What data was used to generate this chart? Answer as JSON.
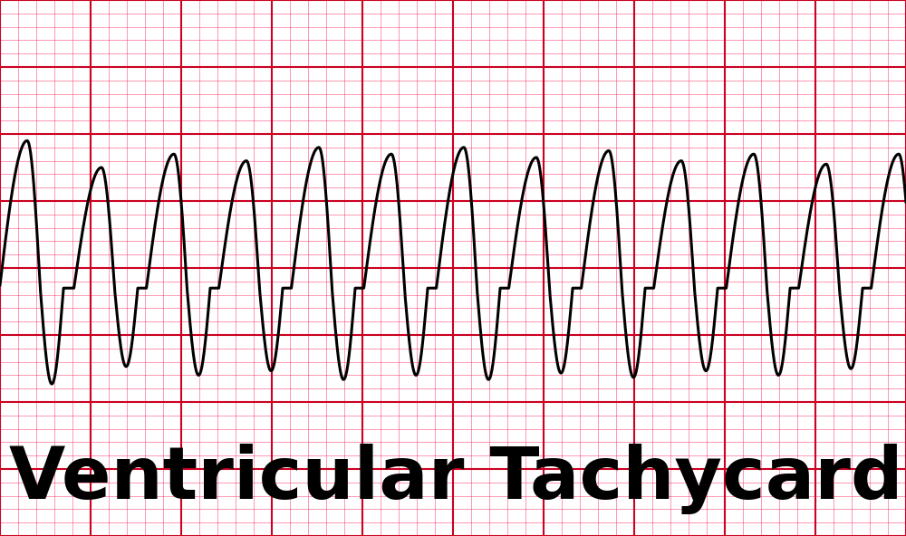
{
  "title": "Ventricular Tachycardia",
  "bg_color": "#ffffff",
  "ecg_paper_bg": "#ffb0c0",
  "grid_minor_color": "#ff3366",
  "grid_major_color": "#cc0022",
  "ecg_color": "#000000",
  "ecg_linewidth": 2.2,
  "text_color": "#000000",
  "text_fontsize": 58,
  "figsize": [
    10.0,
    5.92
  ],
  "dpi": 100,
  "n_points": 8000,
  "xlim": [
    0,
    10
  ],
  "ylim": [
    -3.5,
    4.5
  ],
  "waveform_centers": [
    0.3,
    1.12,
    1.92,
    2.72,
    3.52,
    4.32,
    5.12,
    5.92,
    6.72,
    7.52,
    8.32,
    9.12,
    9.92
  ],
  "waveform_amps": [
    2.2,
    1.8,
    2.0,
    1.9,
    2.1,
    2.0,
    2.1,
    1.95,
    2.05,
    1.9,
    2.0,
    1.85,
    2.0
  ],
  "baseline": 0.2,
  "period": 0.8
}
